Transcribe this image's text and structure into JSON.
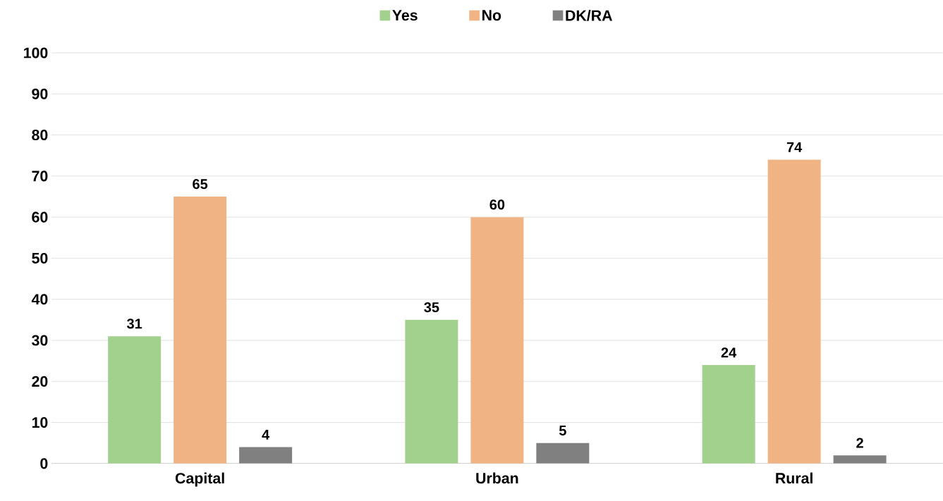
{
  "chart_data": {
    "type": "bar",
    "categories": [
      "Capital",
      "Urban",
      "Rural"
    ],
    "series": [
      {
        "name": "Yes",
        "color": "#a2d18e",
        "values": [
          31,
          35,
          24
        ]
      },
      {
        "name": "No",
        "color": "#f0b383",
        "values": [
          65,
          60,
          74
        ]
      },
      {
        "name": "DK/RA",
        "color": "#808080",
        "values": [
          4,
          5,
          2
        ]
      }
    ],
    "ylim": [
      0,
      100
    ],
    "yticks": [
      0,
      10,
      20,
      30,
      40,
      50,
      60,
      70,
      80,
      90,
      100
    ],
    "grid": "y",
    "legend": "top",
    "data_labels": true
  }
}
